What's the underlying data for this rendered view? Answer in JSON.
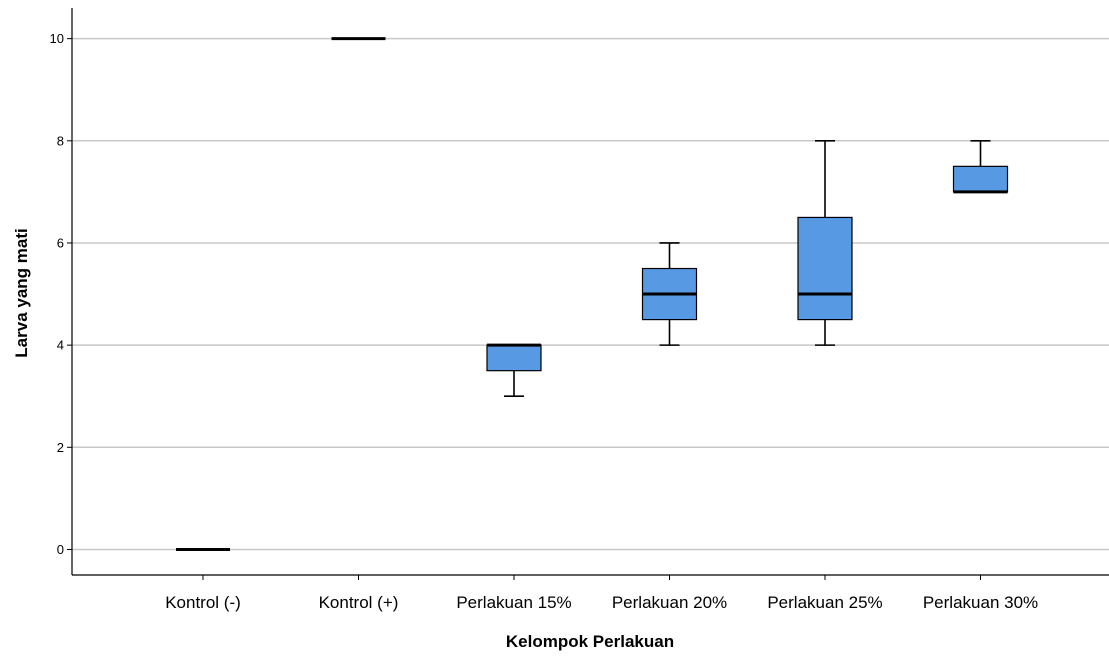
{
  "chart_data": {
    "type": "boxplot",
    "title": "",
    "xlabel": "Kelompok Perlakuan",
    "ylabel": "Larva yang mati",
    "ylim": [
      -0.5,
      10.6
    ],
    "yticks": [
      0,
      2,
      4,
      6,
      8,
      10
    ],
    "grid": true,
    "colors": {
      "box_fill": "#5799E3",
      "grid": "#C8C8C8",
      "stroke": "#000000"
    },
    "categories": [
      "Kontrol (-)",
      "Kontrol (+)",
      "Perlakuan 15%",
      "Perlakuan 20%",
      "Perlakuan 25%",
      "Perlakuan 30%"
    ],
    "boxes": [
      {
        "min": 0,
        "q1": 0,
        "median": 0,
        "q3": 0,
        "max": 0
      },
      {
        "min": 10,
        "q1": 10,
        "median": 10,
        "q3": 10,
        "max": 10
      },
      {
        "min": 3,
        "q1": 3.5,
        "median": 4,
        "q3": 4,
        "max": 4
      },
      {
        "min": 4,
        "q1": 4.5,
        "median": 5,
        "q3": 5.5,
        "max": 6
      },
      {
        "min": 4,
        "q1": 4.5,
        "median": 5,
        "q3": 6.5,
        "max": 8
      },
      {
        "min": 7,
        "q1": 7,
        "median": 7,
        "q3": 7.5,
        "max": 8
      }
    ]
  }
}
